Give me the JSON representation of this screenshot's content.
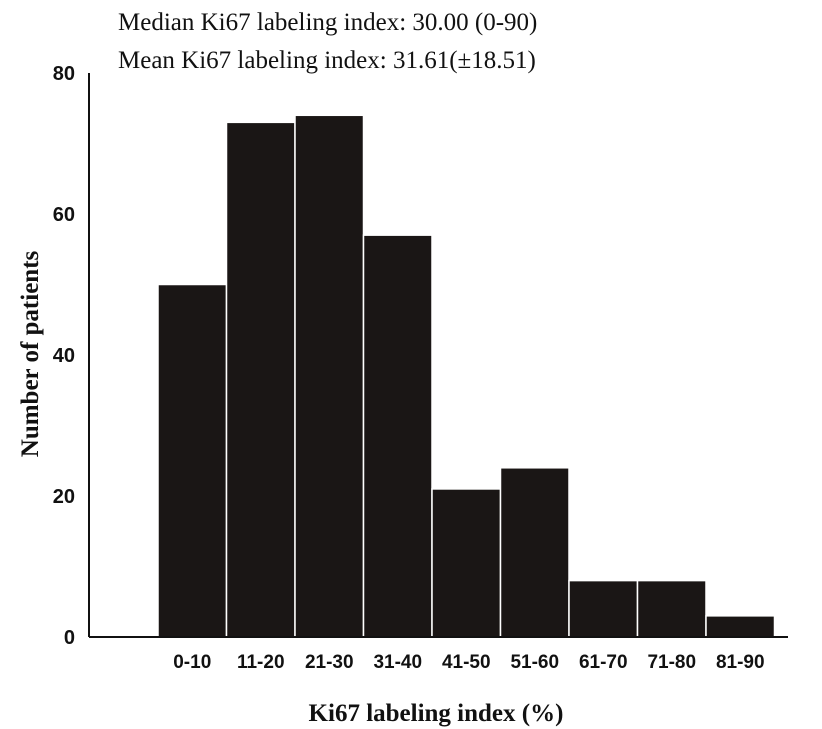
{
  "chart_data": {
    "type": "bar",
    "title": "",
    "annotations": [
      "Median Ki67 labeling index: 30.00 (0-90)",
      "Mean Ki67 labeling index: 31.61(±18.51)"
    ],
    "xlabel": "Ki67 labeling index (%)",
    "ylabel": "Number of patients",
    "categories": [
      "0-10",
      "11-20",
      "21-30",
      "31-40",
      "41-50",
      "51-60",
      "61-70",
      "71-80",
      "81-90"
    ],
    "values": [
      50,
      73,
      74,
      57,
      21,
      24,
      8,
      8,
      3
    ],
    "ylim": [
      0,
      80
    ],
    "yticks": [
      0,
      20,
      40,
      60,
      80
    ],
    "ytick_labels": [
      "0",
      "20",
      "40",
      "60",
      "80"
    ],
    "grid": false,
    "bar_color": "#1a1615",
    "bar_edge_color": "#ffffff"
  }
}
